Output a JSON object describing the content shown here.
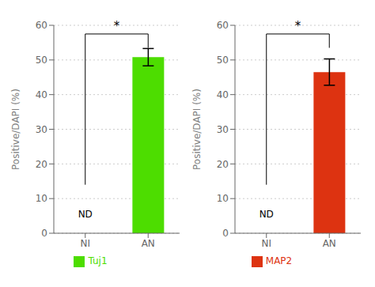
{
  "chart_data": [
    {
      "type": "bar",
      "categories": [
        "NI",
        "AN"
      ],
      "series": [
        {
          "name": "Tuj1",
          "color": "#4ddd00",
          "values": [
            0,
            50.8
          ],
          "errors": [
            0,
            2.5
          ]
        }
      ],
      "ylabel": "Positive/DAPI (%)",
      "ylim": [
        0,
        60
      ],
      "yticks": [
        0,
        10,
        20,
        30,
        40,
        50,
        60
      ],
      "grid": true,
      "legend": "bottom",
      "annotations": [
        {
          "text": "ND",
          "x": "NI",
          "y": 3.5
        },
        {
          "text": "*",
          "bracket": {
            "from": "NI",
            "to": "AN",
            "y": 57.5,
            "from_bottom": 14,
            "to_bottom": 53.5
          }
        }
      ]
    },
    {
      "type": "bar",
      "categories": [
        "NI",
        "AN"
      ],
      "series": [
        {
          "name": "MAP2",
          "color": "#dd3311",
          "values": [
            0,
            46.5
          ],
          "errors": [
            0,
            3.8
          ]
        }
      ],
      "ylabel": "Positive/DAPI (%)",
      "ylim": [
        0,
        60
      ],
      "yticks": [
        0,
        10,
        20,
        30,
        40,
        50,
        60
      ],
      "grid": true,
      "legend": "bottom",
      "annotations": [
        {
          "text": "ND",
          "x": "NI",
          "y": 3.5
        },
        {
          "text": "*",
          "bracket": {
            "from": "NI",
            "to": "AN",
            "y": 57.5,
            "from_bottom": 14,
            "to_bottom": 53.5
          }
        }
      ]
    }
  ]
}
